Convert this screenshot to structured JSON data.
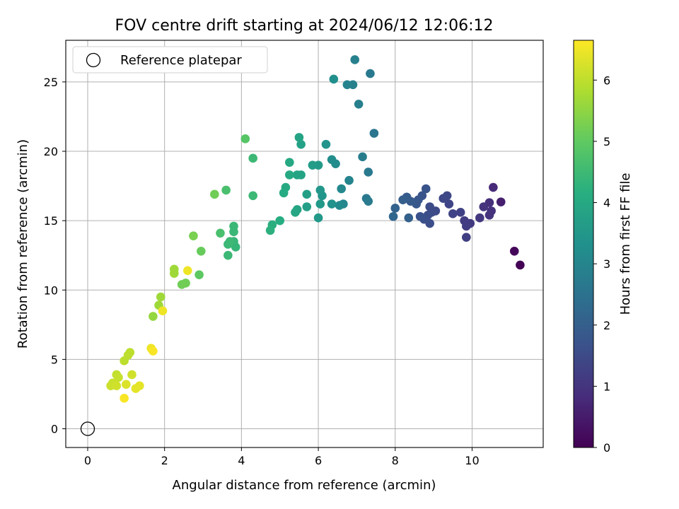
{
  "chart_data": {
    "type": "scatter",
    "title": "FOV centre drift starting at 2024/06/12 12:06:12",
    "xlabel": "Angular distance from reference (arcmin)",
    "ylabel": "Rotation from reference (arcmin)",
    "xlim": [
      -0.57,
      11.85
    ],
    "ylim": [
      -1.35,
      28.0
    ],
    "xticks": [
      0,
      2,
      4,
      6,
      8,
      10
    ],
    "yticks": [
      0,
      5,
      10,
      15,
      20,
      25
    ],
    "grid": true,
    "legend": {
      "placement": "top-left",
      "entries": [
        "Reference platepar"
      ]
    },
    "reference_point": {
      "x": 0,
      "y": 0,
      "label": "Reference platepar"
    },
    "colorbar": {
      "label": "Hours from first FF file",
      "min": 0,
      "max": 6.65,
      "ticks": [
        0,
        1,
        2,
        3,
        4,
        5,
        6
      ],
      "colormap": "viridis"
    },
    "points": [
      {
        "x": 11.25,
        "y": 11.8,
        "c": 0.02
      },
      {
        "x": 11.1,
        "y": 12.8,
        "c": 0.1
      },
      {
        "x": 10.75,
        "y": 16.35,
        "c": 0.6
      },
      {
        "x": 10.55,
        "y": 17.4,
        "c": 0.8
      },
      {
        "x": 10.45,
        "y": 16.3,
        "c": 0.9
      },
      {
        "x": 10.5,
        "y": 15.7,
        "c": 0.95
      },
      {
        "x": 10.45,
        "y": 15.4,
        "c": 1.0
      },
      {
        "x": 10.3,
        "y": 16.0,
        "c": 1.0
      },
      {
        "x": 10.2,
        "y": 15.2,
        "c": 1.1
      },
      {
        "x": 9.95,
        "y": 14.8,
        "c": 1.15
      },
      {
        "x": 9.85,
        "y": 14.6,
        "c": 1.2
      },
      {
        "x": 9.8,
        "y": 15.0,
        "c": 1.2
      },
      {
        "x": 9.85,
        "y": 13.8,
        "c": 1.25
      },
      {
        "x": 9.7,
        "y": 15.6,
        "c": 1.3
      },
      {
        "x": 9.5,
        "y": 15.5,
        "c": 1.35
      },
      {
        "x": 9.4,
        "y": 16.2,
        "c": 1.4
      },
      {
        "x": 9.35,
        "y": 16.8,
        "c": 1.45
      },
      {
        "x": 9.25,
        "y": 16.6,
        "c": 1.45
      },
      {
        "x": 9.05,
        "y": 15.7,
        "c": 1.5
      },
      {
        "x": 8.9,
        "y": 16.0,
        "c": 1.55
      },
      {
        "x": 8.95,
        "y": 15.6,
        "c": 1.55
      },
      {
        "x": 8.85,
        "y": 15.4,
        "c": 1.6
      },
      {
        "x": 8.9,
        "y": 14.8,
        "c": 1.6
      },
      {
        "x": 8.75,
        "y": 15.1,
        "c": 1.65
      },
      {
        "x": 8.65,
        "y": 15.3,
        "c": 1.7
      },
      {
        "x": 8.8,
        "y": 17.3,
        "c": 1.75
      },
      {
        "x": 8.7,
        "y": 16.8,
        "c": 1.75
      },
      {
        "x": 8.6,
        "y": 16.5,
        "c": 1.8
      },
      {
        "x": 8.55,
        "y": 16.2,
        "c": 1.85
      },
      {
        "x": 8.4,
        "y": 16.4,
        "c": 1.9
      },
      {
        "x": 8.3,
        "y": 16.7,
        "c": 1.95
      },
      {
        "x": 8.2,
        "y": 16.5,
        "c": 2.0
      },
      {
        "x": 8.35,
        "y": 15.2,
        "c": 2.05
      },
      {
        "x": 8.0,
        "y": 15.9,
        "c": 2.1
      },
      {
        "x": 7.95,
        "y": 15.3,
        "c": 2.2
      },
      {
        "x": 7.45,
        "y": 21.3,
        "c": 2.6
      },
      {
        "x": 7.35,
        "y": 25.6,
        "c": 2.7
      },
      {
        "x": 7.3,
        "y": 18.5,
        "c": 2.7
      },
      {
        "x": 7.25,
        "y": 16.6,
        "c": 2.7
      },
      {
        "x": 7.3,
        "y": 16.4,
        "c": 2.75
      },
      {
        "x": 7.15,
        "y": 19.6,
        "c": 2.8
      },
      {
        "x": 7.05,
        "y": 23.4,
        "c": 2.85
      },
      {
        "x": 6.95,
        "y": 26.6,
        "c": 2.9
      },
      {
        "x": 6.9,
        "y": 24.8,
        "c": 2.9
      },
      {
        "x": 6.75,
        "y": 24.8,
        "c": 2.95
      },
      {
        "x": 6.8,
        "y": 17.9,
        "c": 3.0
      },
      {
        "x": 6.65,
        "y": 16.2,
        "c": 3.05
      },
      {
        "x": 6.6,
        "y": 17.3,
        "c": 3.1
      },
      {
        "x": 6.55,
        "y": 16.1,
        "c": 3.15
      },
      {
        "x": 6.45,
        "y": 19.1,
        "c": 3.2
      },
      {
        "x": 6.35,
        "y": 19.4,
        "c": 3.25
      },
      {
        "x": 6.4,
        "y": 25.2,
        "c": 3.3
      },
      {
        "x": 6.35,
        "y": 16.2,
        "c": 3.35
      },
      {
        "x": 6.2,
        "y": 20.5,
        "c": 3.4
      },
      {
        "x": 6.1,
        "y": 16.8,
        "c": 3.45
      },
      {
        "x": 6.05,
        "y": 17.2,
        "c": 3.5
      },
      {
        "x": 6.0,
        "y": 15.2,
        "c": 3.55
      },
      {
        "x": 6.05,
        "y": 16.2,
        "c": 3.55
      },
      {
        "x": 6.0,
        "y": 19.0,
        "c": 3.6
      },
      {
        "x": 5.85,
        "y": 19.0,
        "c": 3.65
      },
      {
        "x": 5.7,
        "y": 16.0,
        "c": 3.7
      },
      {
        "x": 5.7,
        "y": 16.9,
        "c": 3.75
      },
      {
        "x": 5.55,
        "y": 20.5,
        "c": 3.8
      },
      {
        "x": 5.5,
        "y": 21.0,
        "c": 3.85
      },
      {
        "x": 5.55,
        "y": 18.3,
        "c": 3.85
      },
      {
        "x": 5.45,
        "y": 18.3,
        "c": 3.9
      },
      {
        "x": 5.45,
        "y": 15.8,
        "c": 3.9
      },
      {
        "x": 5.4,
        "y": 15.6,
        "c": 3.95
      },
      {
        "x": 5.25,
        "y": 18.3,
        "c": 4.0
      },
      {
        "x": 5.25,
        "y": 19.2,
        "c": 4.0
      },
      {
        "x": 5.15,
        "y": 17.4,
        "c": 4.05
      },
      {
        "x": 5.1,
        "y": 17.0,
        "c": 4.1
      },
      {
        "x": 5.0,
        "y": 15.0,
        "c": 4.15
      },
      {
        "x": 4.8,
        "y": 14.7,
        "c": 4.2
      },
      {
        "x": 4.75,
        "y": 14.3,
        "c": 4.25
      },
      {
        "x": 4.3,
        "y": 19.5,
        "c": 4.5
      },
      {
        "x": 4.3,
        "y": 16.8,
        "c": 4.5
      },
      {
        "x": 3.85,
        "y": 13.1,
        "c": 4.4
      },
      {
        "x": 3.8,
        "y": 13.5,
        "c": 4.4
      },
      {
        "x": 3.8,
        "y": 14.2,
        "c": 4.45
      },
      {
        "x": 3.8,
        "y": 14.6,
        "c": 4.45
      },
      {
        "x": 3.65,
        "y": 12.5,
        "c": 4.5
      },
      {
        "x": 3.65,
        "y": 13.3,
        "c": 4.5
      },
      {
        "x": 3.7,
        "y": 13.5,
        "c": 4.5
      },
      {
        "x": 3.6,
        "y": 17.2,
        "c": 4.7
      },
      {
        "x": 3.45,
        "y": 14.1,
        "c": 4.7
      },
      {
        "x": 4.1,
        "y": 20.9,
        "c": 4.9
      },
      {
        "x": 3.3,
        "y": 16.9,
        "c": 5.2
      },
      {
        "x": 2.95,
        "y": 12.8,
        "c": 5.1
      },
      {
        "x": 2.9,
        "y": 11.1,
        "c": 5.0
      },
      {
        "x": 2.75,
        "y": 13.9,
        "c": 5.3
      },
      {
        "x": 2.55,
        "y": 10.5,
        "c": 5.2
      },
      {
        "x": 2.45,
        "y": 10.4,
        "c": 5.2
      },
      {
        "x": 2.6,
        "y": 11.4,
        "c": 6.5
      },
      {
        "x": 2.25,
        "y": 11.5,
        "c": 5.7
      },
      {
        "x": 2.25,
        "y": 11.2,
        "c": 5.7
      },
      {
        "x": 1.9,
        "y": 9.5,
        "c": 5.7
      },
      {
        "x": 1.85,
        "y": 8.9,
        "c": 5.7
      },
      {
        "x": 1.7,
        "y": 8.1,
        "c": 5.6
      },
      {
        "x": 1.95,
        "y": 8.5,
        "c": 6.5
      },
      {
        "x": 1.65,
        "y": 5.8,
        "c": 6.5
      },
      {
        "x": 1.7,
        "y": 5.6,
        "c": 6.6
      },
      {
        "x": 1.1,
        "y": 5.5,
        "c": 6.0
      },
      {
        "x": 1.05,
        "y": 5.3,
        "c": 6.0
      },
      {
        "x": 0.95,
        "y": 4.9,
        "c": 6.0
      },
      {
        "x": 0.75,
        "y": 3.9,
        "c": 6.05
      },
      {
        "x": 0.8,
        "y": 3.7,
        "c": 6.1
      },
      {
        "x": 1.15,
        "y": 3.9,
        "c": 6.2
      },
      {
        "x": 0.65,
        "y": 3.3,
        "c": 6.1
      },
      {
        "x": 0.6,
        "y": 3.1,
        "c": 6.15
      },
      {
        "x": 0.7,
        "y": 3.2,
        "c": 6.15
      },
      {
        "x": 0.75,
        "y": 3.1,
        "c": 6.2
      },
      {
        "x": 1.0,
        "y": 3.2,
        "c": 6.3
      },
      {
        "x": 1.35,
        "y": 3.1,
        "c": 6.4
      },
      {
        "x": 1.25,
        "y": 2.9,
        "c": 6.4
      },
      {
        "x": 0.95,
        "y": 2.2,
        "c": 6.6
      }
    ]
  }
}
